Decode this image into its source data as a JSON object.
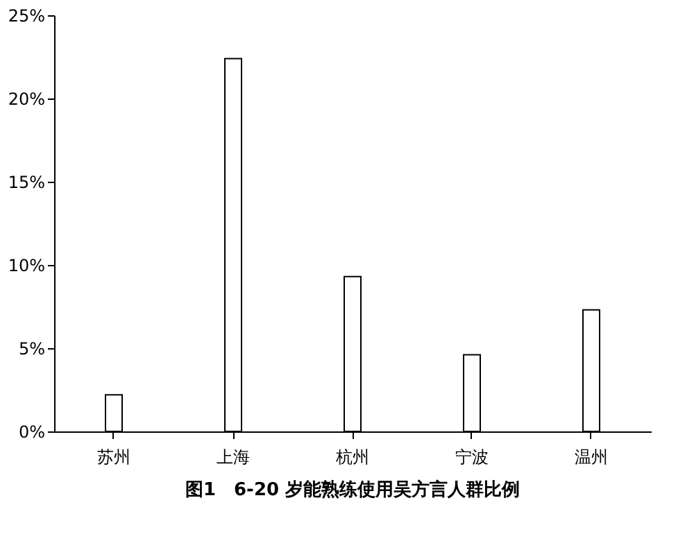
{
  "chart_data": {
    "type": "bar",
    "title": "图1　6-20 岁能熟练使用吴方言人群比例",
    "categories": [
      "苏州",
      "上海",
      "杭州",
      "宁波",
      "温州"
    ],
    "values": [
      2.2,
      22.4,
      9.3,
      4.6,
      7.3
    ],
    "color": "#ffffff",
    "ylim": [
      0,
      25
    ],
    "yticks": [
      {
        "value": 0,
        "label": "0%"
      },
      {
        "value": 5,
        "label": "5%"
      },
      {
        "value": 10,
        "label": "10%"
      },
      {
        "value": 15,
        "label": "15%"
      },
      {
        "value": 20,
        "label": "20%"
      },
      {
        "value": 25,
        "label": "25%"
      }
    ],
    "grid": false
  }
}
